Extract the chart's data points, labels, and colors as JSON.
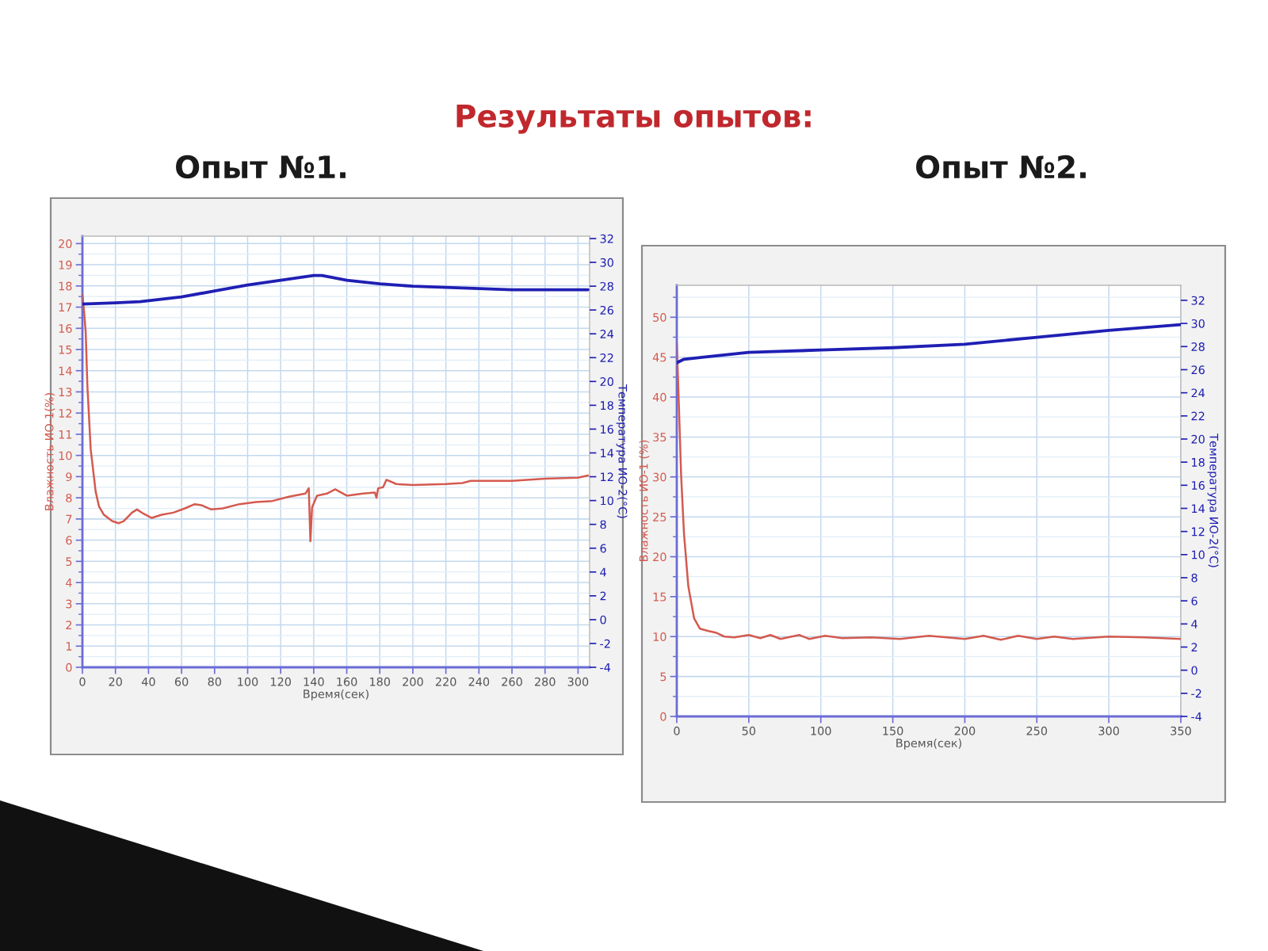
{
  "chart_data": [
    {
      "type": "line",
      "title": "Результаты опытов:",
      "subtitle": "Опыт №1.",
      "xlabel": "Время(сек)",
      "ylabel": "Влажность ИО-1(%)",
      "y2label": "Температура ИО-2(°C)",
      "xlim": [
        0,
        307
      ],
      "xticks": [
        0,
        20,
        40,
        60,
        80,
        100,
        120,
        140,
        160,
        180,
        200,
        220,
        240,
        260,
        280,
        300
      ],
      "ylim": [
        0,
        20.35
      ],
      "yticks": [
        0,
        1,
        2,
        3,
        4,
        5,
        6,
        7,
        8,
        9,
        10,
        11,
        12,
        13,
        14,
        15,
        16,
        17,
        18,
        19,
        20
      ],
      "y2lim": [
        -4,
        32.2
      ],
      "y2ticks": [
        -4,
        -2,
        0,
        2,
        4,
        6,
        8,
        10,
        12,
        14,
        16,
        18,
        20,
        22,
        24,
        26,
        28,
        30,
        32
      ],
      "grid": true,
      "series": [
        {
          "color": "#d45a4f",
          "x": [
            0,
            1,
            2,
            3,
            5,
            8,
            10,
            13,
            18,
            22,
            25,
            30,
            33,
            37,
            42,
            48,
            55,
            62,
            68,
            72,
            78,
            85,
            95,
            105,
            115,
            125,
            135,
            137,
            138,
            139,
            142,
            148,
            153,
            160,
            170,
            177,
            178,
            179,
            182,
            184,
            190,
            200,
            220,
            230,
            235,
            260,
            280,
            300,
            306
          ],
          "values": [
            17.6,
            16.8,
            15.8,
            13.3,
            10.3,
            8.3,
            7.6,
            7.2,
            6.9,
            6.8,
            6.9,
            7.3,
            7.45,
            7.25,
            7.05,
            7.2,
            7.3,
            7.5,
            7.7,
            7.65,
            7.45,
            7.5,
            7.7,
            7.8,
            7.85,
            8.05,
            8.2,
            8.45,
            5.95,
            7.55,
            8.1,
            8.2,
            8.4,
            8.1,
            8.2,
            8.25,
            8.0,
            8.45,
            8.5,
            8.85,
            8.65,
            8.6,
            8.65,
            8.7,
            8.8,
            8.8,
            8.9,
            8.95,
            9.05
          ]
        },
        {
          "color": "#1f1fb4",
          "axis": "y2",
          "x": [
            0,
            20,
            35,
            60,
            80,
            100,
            120,
            140,
            145,
            160,
            180,
            200,
            220,
            240,
            260,
            280,
            306
          ],
          "values": [
            26.5,
            26.6,
            26.7,
            27.1,
            27.6,
            28.1,
            28.5,
            28.9,
            28.9,
            28.5,
            28.2,
            28.0,
            27.9,
            27.8,
            27.7,
            27.7,
            27.7
          ]
        }
      ]
    },
    {
      "type": "line",
      "title": "Опыт №2.",
      "xlabel": "Время(сек)",
      "ylabel": "Влажность ИО-1 (%)",
      "y2label": "Температура ИО-2(°C)",
      "xlim": [
        0,
        350
      ],
      "xticks": [
        0,
        50,
        100,
        150,
        200,
        250,
        300,
        350
      ],
      "ylim": [
        0,
        54
      ],
      "yticks": [
        0,
        5,
        10,
        15,
        20,
        25,
        30,
        35,
        40,
        45,
        50
      ],
      "y2lim": [
        -4,
        33.3
      ],
      "y2ticks": [
        -4,
        -2,
        0,
        2,
        4,
        6,
        8,
        10,
        12,
        14,
        16,
        18,
        20,
        22,
        24,
        26,
        28,
        30,
        32
      ],
      "grid": true,
      "series": [
        {
          "color": "#d45a4f",
          "x": [
            0,
            1,
            3,
            5,
            8,
            12,
            16,
            22,
            27,
            33,
            40,
            50,
            58,
            65,
            72,
            85,
            92,
            103,
            115,
            135,
            155,
            175,
            200,
            213,
            225,
            237,
            250,
            262,
            275,
            300,
            325,
            350
          ],
          "values": [
            46.8,
            41.5,
            30.2,
            22.9,
            16.3,
            12.3,
            11.0,
            10.7,
            10.5,
            10.0,
            9.9,
            10.2,
            9.8,
            10.2,
            9.7,
            10.2,
            9.7,
            10.1,
            9.8,
            9.9,
            9.7,
            10.1,
            9.7,
            10.1,
            9.6,
            10.1,
            9.7,
            10.0,
            9.7,
            10.0,
            9.9,
            9.7
          ]
        },
        {
          "color": "#1f1fb4",
          "axis": "y2",
          "x": [
            0,
            5,
            20,
            50,
            100,
            150,
            200,
            250,
            300,
            350
          ],
          "values": [
            26.6,
            26.9,
            27.1,
            27.5,
            27.7,
            27.9,
            28.2,
            28.8,
            29.4,
            29.9
          ]
        }
      ]
    }
  ]
}
